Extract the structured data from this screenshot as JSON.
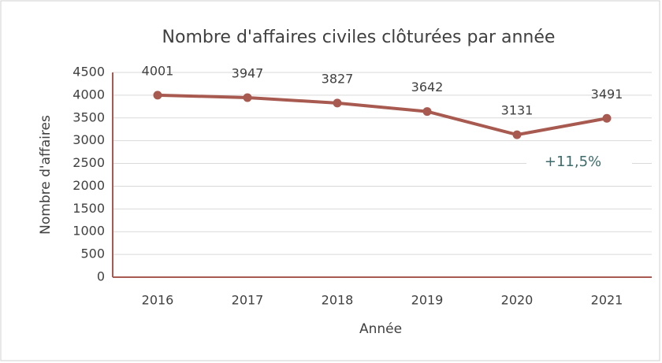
{
  "chart_data": {
    "type": "line",
    "title": "Nombre d'affaires civiles clôturées par année",
    "x_label": "Année",
    "y_label": "Nombre d'affaires",
    "categories": [
      "2016",
      "2017",
      "2018",
      "2019",
      "2020",
      "2021"
    ],
    "series": [
      {
        "name": "Nombre d'affaires",
        "color": "#a85a50",
        "values": [
          4001,
          3947,
          3827,
          3642,
          3131,
          3491
        ]
      }
    ],
    "ylim": [
      0,
      4500
    ],
    "yticks": [
      0,
      500,
      1000,
      1500,
      2000,
      2500,
      3000,
      3500,
      4000,
      4500
    ],
    "grid": true,
    "annotation": "+11,5%"
  }
}
